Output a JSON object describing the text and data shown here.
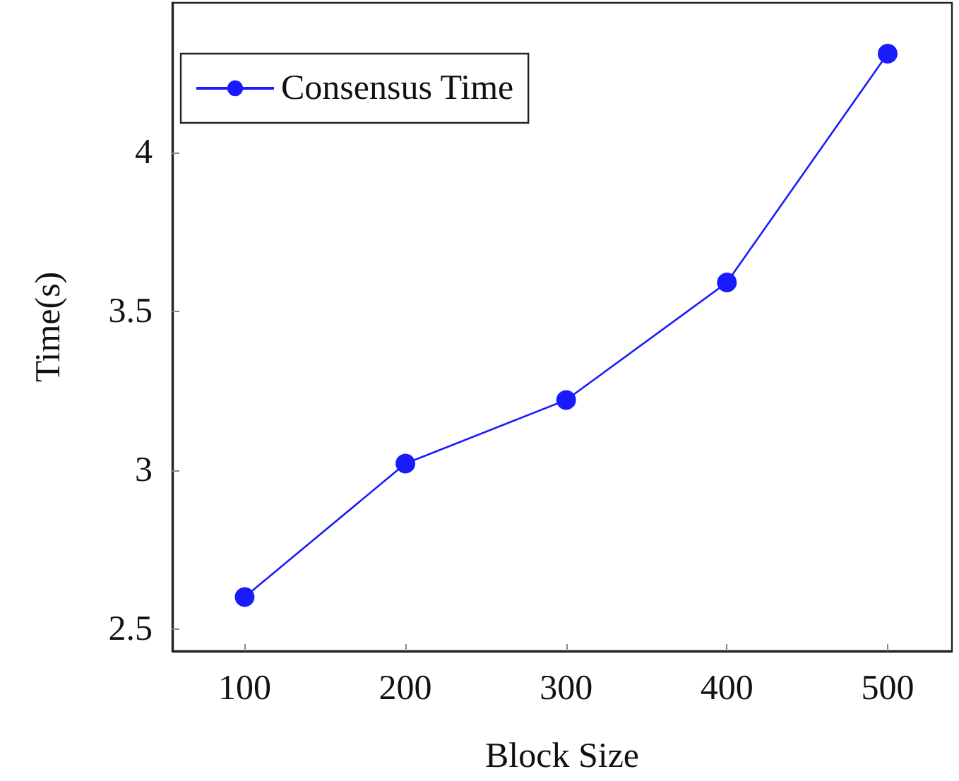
{
  "chart_data": {
    "type": "line",
    "xlabel": "Block Size",
    "ylabel": "Time(s)",
    "x": [
      100,
      200,
      300,
      400,
      500
    ],
    "series": [
      {
        "name": "Consensus Time",
        "color": "#1a1aff",
        "values": [
          2.6,
          3.02,
          3.22,
          3.59,
          4.31
        ]
      }
    ],
    "xlim": [
      55,
      540
    ],
    "xticks": [
      100,
      200,
      300,
      400,
      500
    ],
    "ylim": [
      2.43,
      4.47
    ],
    "yticks": [
      2.5,
      3,
      3.5,
      4
    ],
    "marker": "circle",
    "line_style": "solid",
    "legend": "top left",
    "grid": false
  }
}
